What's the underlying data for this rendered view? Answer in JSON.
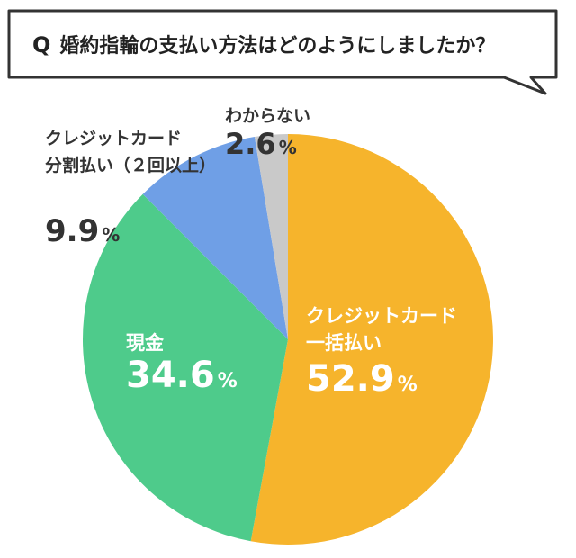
{
  "question": {
    "marker": "Q",
    "text": "婚約指輪の支払い方法はどのようにしましたか？"
  },
  "chart_data": {
    "type": "pie",
    "title": "婚約指輪の支払い方法はどのようにしましたか？",
    "value_suffix": "%",
    "slices": [
      {
        "label_lines": [
          "クレジットカード",
          "一括払い"
        ],
        "value": 52.9,
        "display": "52.9",
        "color": "#f6b42c",
        "label_color": "#ffffff"
      },
      {
        "label_lines": [
          "現金"
        ],
        "value": 34.6,
        "display": "34.6",
        "color": "#4ecb8b",
        "label_color": "#ffffff"
      },
      {
        "label_lines": [
          "クレジットカード",
          "分割払い（２回以上）"
        ],
        "value": 9.9,
        "display": "9.9",
        "color": "#6f9fe6",
        "label_color": "#333333"
      },
      {
        "label_lines": [
          "わからない"
        ],
        "value": 2.6,
        "display": "2.6",
        "color": "#c9c9c9",
        "label_color": "#333333"
      }
    ]
  }
}
